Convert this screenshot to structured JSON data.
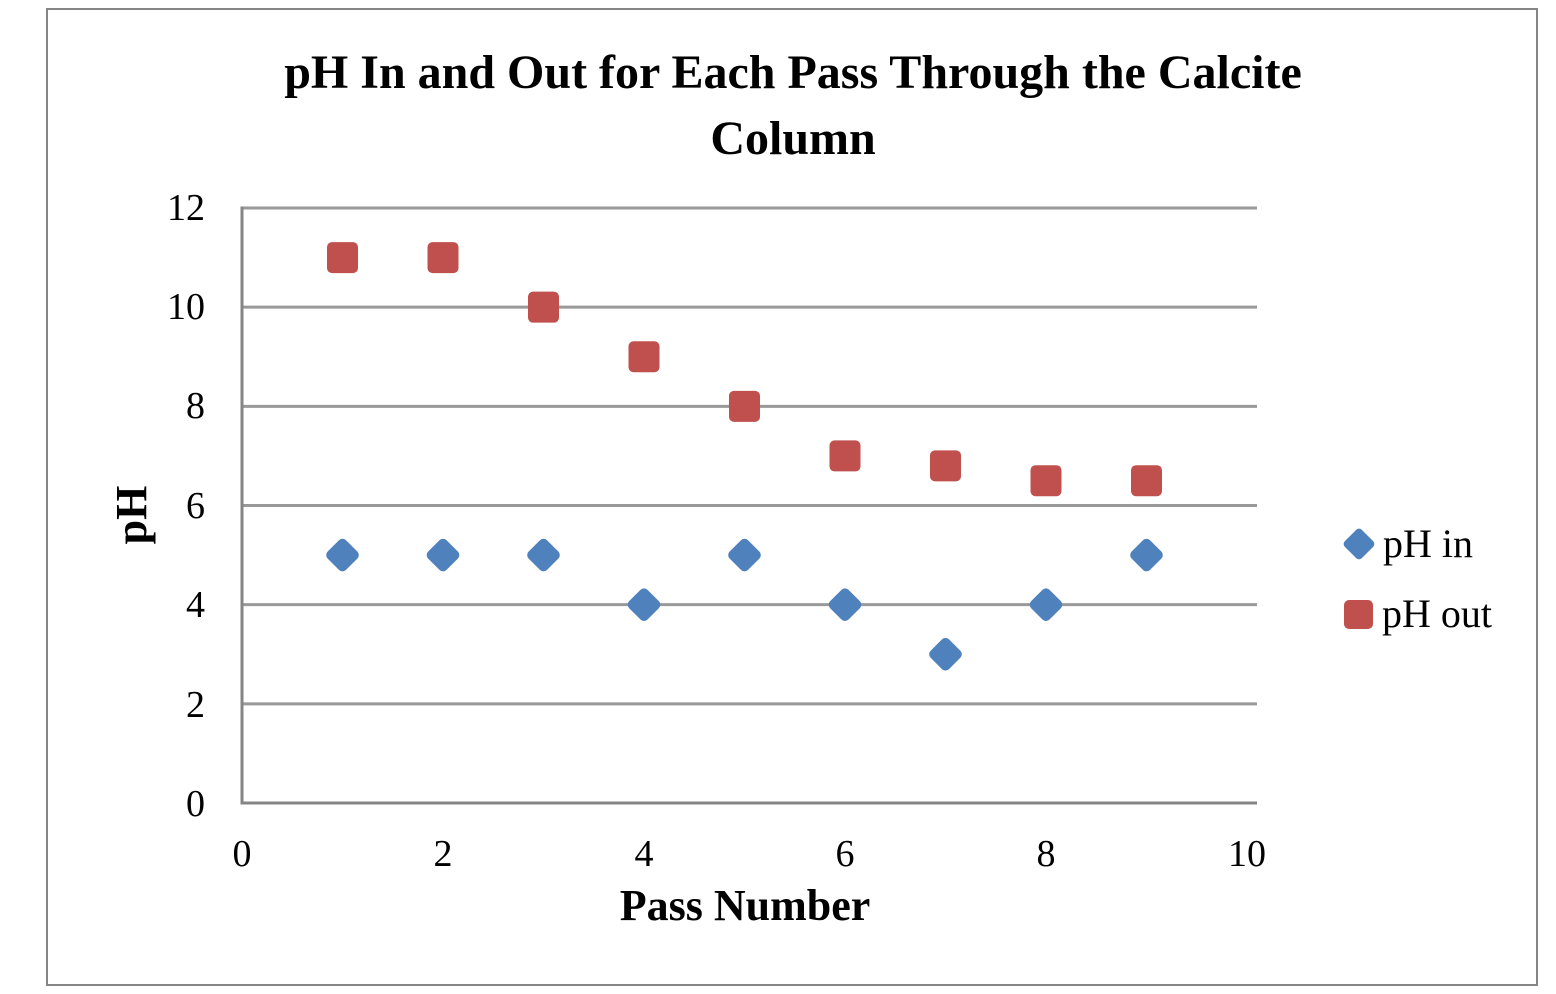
{
  "chart_data": {
    "type": "scatter",
    "title": "pH In and Out for Each Pass Through the Calcite Column",
    "xlabel": "Pass Number",
    "ylabel": "pH",
    "xlim": [
      0,
      10
    ],
    "ylim": [
      0,
      12
    ],
    "xticks": [
      0,
      2,
      4,
      6,
      8,
      10
    ],
    "yticks": [
      0,
      2,
      4,
      6,
      8,
      10,
      12
    ],
    "grid": "horizontal",
    "grid_color": "#999999",
    "axis_color": "#858585",
    "legend_position": "right",
    "x": [
      1,
      2,
      3,
      4,
      5,
      6,
      7,
      8,
      9
    ],
    "series": [
      {
        "name": "pH in",
        "marker": "diamond",
        "color": "#4F81BD",
        "values": [
          5,
          5,
          5,
          4,
          5,
          4,
          3,
          4,
          5
        ],
        "trendline": {
          "type": "polynomial",
          "order": 3,
          "color": "#000000"
        }
      },
      {
        "name": "pH out",
        "marker": "square",
        "color": "#C0504D",
        "values": [
          11,
          11,
          10,
          9,
          8,
          7,
          6.8,
          6.5,
          6.5
        ],
        "trendline": {
          "type": "polynomial",
          "order": 4,
          "color": "#000000"
        }
      }
    ]
  }
}
